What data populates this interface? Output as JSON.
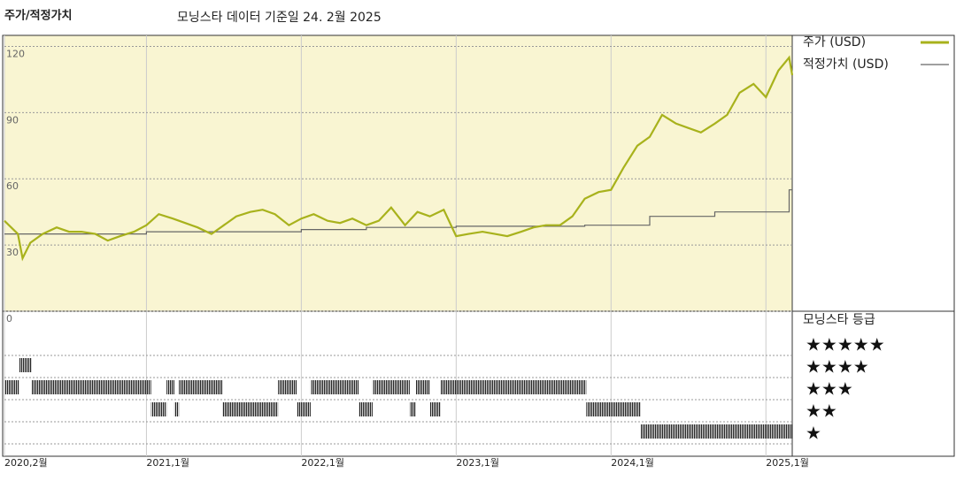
{
  "chart_data": {
    "type": "line",
    "title": "주가/적정가치",
    "subtitle": "모닝스타 데이터 기준일 24. 2월 2025",
    "xlim": [
      2020.083,
      2025.17
    ],
    "xticks": [
      {
        "value": 2020.083,
        "label": "2020,2월"
      },
      {
        "value": 2021,
        "label": "2021,1월"
      },
      {
        "value": 2022,
        "label": "2022,1월"
      },
      {
        "value": 2023,
        "label": "2023,1월"
      },
      {
        "value": 2024,
        "label": "2024,1월"
      },
      {
        "value": 2025,
        "label": "2025,1월"
      }
    ],
    "ylim": [
      0,
      125
    ],
    "yticks": [
      0,
      30,
      60,
      90,
      120
    ],
    "grid": true,
    "series": [
      {
        "name": "주가 (USD)",
        "color": "#a8b21c",
        "x": [
          2020.083,
          2020.17,
          2020.2,
          2020.25,
          2020.33,
          2020.42,
          2020.5,
          2020.58,
          2020.67,
          2020.75,
          2020.83,
          2020.92,
          2021.0,
          2021.08,
          2021.17,
          2021.25,
          2021.33,
          2021.42,
          2021.5,
          2021.58,
          2021.67,
          2021.75,
          2021.83,
          2021.92,
          2022.0,
          2022.08,
          2022.17,
          2022.25,
          2022.33,
          2022.42,
          2022.5,
          2022.58,
          2022.67,
          2022.75,
          2022.83,
          2022.92,
          2023.0,
          2023.08,
          2023.17,
          2023.25,
          2023.33,
          2023.42,
          2023.5,
          2023.58,
          2023.67,
          2023.75,
          2023.83,
          2023.92,
          2024.0,
          2024.08,
          2024.17,
          2024.25,
          2024.33,
          2024.42,
          2024.5,
          2024.58,
          2024.67,
          2024.75,
          2024.83,
          2024.92,
          2025.0,
          2025.08,
          2025.15,
          2025.17
        ],
        "values": [
          41,
          35,
          24,
          31,
          35,
          38,
          36,
          36,
          35,
          32,
          34,
          36,
          39,
          44,
          42,
          40,
          38,
          35,
          39,
          43,
          45,
          46,
          44,
          39,
          42,
          44,
          41,
          40,
          42,
          39,
          41,
          47,
          39,
          45,
          43,
          46,
          34,
          35,
          36,
          35,
          34,
          36,
          38,
          39,
          39,
          43,
          51,
          54,
          55,
          65,
          75,
          79,
          89,
          85,
          83,
          81,
          85,
          89,
          99,
          103,
          97,
          109,
          115,
          107
        ]
      },
      {
        "name": "적정가치 (USD)",
        "color": "#666666",
        "x": [
          2020.083,
          2021.0,
          2021.0,
          2022.0,
          2022.0,
          2022.42,
          2022.42,
          2023.0,
          2023.0,
          2023.83,
          2023.83,
          2024.25,
          2024.25,
          2024.67,
          2024.67,
          2025.15,
          2025.15,
          2025.17
        ],
        "values": [
          35,
          35,
          36,
          36,
          37,
          37,
          38,
          38,
          38.5,
          38.5,
          39,
          39,
          43,
          43,
          45,
          45,
          55,
          55
        ]
      }
    ],
    "rating_title": "모닝스타 등급",
    "rating_labels": [
      "★★★★★",
      "★★★★",
      "★★★",
      "★★",
      "★"
    ],
    "ratings": {
      "start": [
        2020.083,
        2020.18,
        2020.26,
        2021.03,
        2021.13,
        2021.18,
        2021.21,
        2021.49,
        2021.85,
        2021.97,
        2022.06,
        2022.37,
        2022.46,
        2022.7,
        2022.74,
        2022.83,
        2022.9,
        2023.84,
        2024.19
      ],
      "end": [
        2020.18,
        2020.26,
        2021.03,
        2021.13,
        2021.18,
        2021.21,
        2021.49,
        2021.85,
        2021.97,
        2022.06,
        2022.37,
        2022.46,
        2022.7,
        2022.74,
        2022.83,
        2022.9,
        2023.84,
        2024.19,
        2025.17
      ],
      "stars": [
        3,
        4,
        3,
        2,
        3,
        2,
        3,
        2,
        3,
        2,
        3,
        2,
        3,
        2,
        3,
        2,
        3,
        2,
        1
      ]
    }
  }
}
